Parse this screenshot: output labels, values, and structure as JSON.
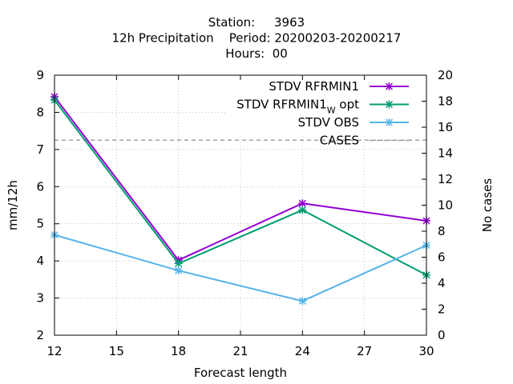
{
  "chart_data": {
    "type": "line",
    "title_lines": [
      "Station:     3963",
      "12h Precipitation    Period: 20200203-20200217",
      "Hours:  00"
    ],
    "xlabel": "Forecast length",
    "ylabel": "mm/12h",
    "y2label": "No cases",
    "x": [
      12,
      18,
      24,
      30
    ],
    "xlim": [
      12,
      30
    ],
    "ylim": [
      2,
      9
    ],
    "y2lim": [
      0,
      20
    ],
    "xticks": [
      "12",
      "15",
      "18",
      "21",
      "24",
      "27",
      "30"
    ],
    "yticks": [
      "2",
      "3",
      "4",
      "5",
      "6",
      "7",
      "8",
      "9"
    ],
    "y2ticks": [
      "0",
      "2",
      "4",
      "6",
      "8",
      "10",
      "12",
      "14",
      "16",
      "18",
      "20"
    ],
    "grid": true,
    "legend_position": "top-right",
    "series": [
      {
        "name": "STDV RFRMIN1",
        "values": [
          8.42,
          4.02,
          5.55,
          5.08
        ],
        "color": "#9400d3",
        "marker": "x-star",
        "axis": "y1"
      },
      {
        "name": "STDV RFRMIN1",
        "name_sub": "W",
        "name_suffix": " opt",
        "values": [
          8.33,
          3.93,
          5.37,
          3.62
        ],
        "color": "#009e73",
        "marker": "x-star",
        "axis": "y1"
      },
      {
        "name": "STDV OBS",
        "values": [
          4.7,
          3.74,
          2.92,
          4.42
        ],
        "color": "#56b4e9",
        "marker": "x-star",
        "axis": "y1"
      },
      {
        "name": "CASES",
        "values": [
          15,
          15,
          15,
          15
        ],
        "color": "#a0a0a0",
        "marker": "none",
        "dashed": true,
        "axis": "y2"
      }
    ]
  }
}
